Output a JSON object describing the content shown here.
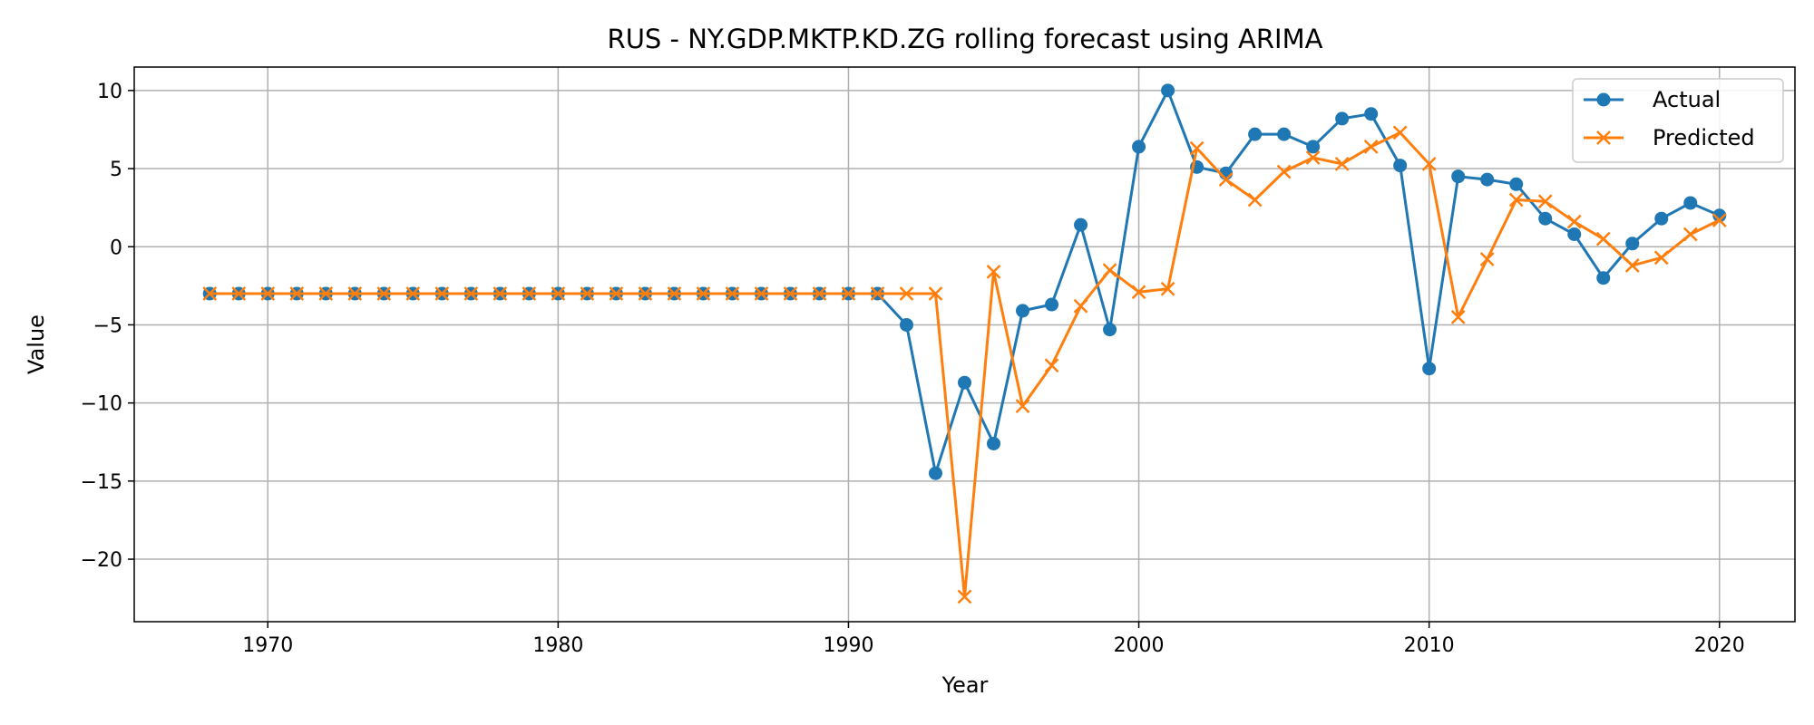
{
  "chart_data": {
    "type": "line",
    "title": "RUS - NY.GDP.MKTP.KD.ZG rolling forecast using ARIMA",
    "xlabel": "Year",
    "ylabel": "Value",
    "xlim": [
      1965.4,
      2022.6
    ],
    "ylim": [
      -24.0,
      11.5
    ],
    "xticks": [
      1970,
      1980,
      1990,
      2000,
      2010,
      2020
    ],
    "xtick_labels": [
      "1970",
      "1980",
      "1990",
      "2000",
      "2010",
      "2020"
    ],
    "yticks": [
      10,
      5,
      0,
      -5,
      -10,
      -15,
      -20
    ],
    "ytick_labels": [
      "10",
      "5",
      "0",
      "−5",
      "−10",
      "−15",
      "−20"
    ],
    "grid": true,
    "legend_position": "top-right",
    "x": [
      1968,
      1969,
      1970,
      1971,
      1972,
      1973,
      1974,
      1975,
      1976,
      1977,
      1978,
      1979,
      1980,
      1981,
      1982,
      1983,
      1984,
      1985,
      1986,
      1987,
      1988,
      1989,
      1990,
      1991,
      1992,
      1993,
      1994,
      1995,
      1996,
      1997,
      1998,
      1999,
      2000,
      2001,
      2002,
      2003,
      2004,
      2005,
      2006,
      2007,
      2008,
      2009,
      2010,
      2011,
      2012,
      2013,
      2014,
      2015,
      2016,
      2017,
      2018,
      2019,
      2020
    ],
    "series": [
      {
        "name": "Actual",
        "color": "#1f77b4",
        "marker": "circle",
        "values": [
          -3.0,
          -3.0,
          -3.0,
          -3.0,
          -3.0,
          -3.0,
          -3.0,
          -3.0,
          -3.0,
          -3.0,
          -3.0,
          -3.0,
          -3.0,
          -3.0,
          -3.0,
          -3.0,
          -3.0,
          -3.0,
          -3.0,
          -3.0,
          -3.0,
          -3.0,
          -3.0,
          -3.0,
          -5.0,
          -14.5,
          -8.7,
          -12.6,
          -4.1,
          -3.7,
          1.4,
          -5.3,
          6.4,
          10.0,
          5.1,
          4.7,
          7.2,
          7.2,
          6.4,
          8.2,
          8.5,
          5.2,
          -7.8,
          4.5,
          4.3,
          4.0,
          1.8,
          0.8,
          -2.0,
          0.2,
          1.8,
          2.8,
          2.0
        ]
      },
      {
        "name": "Predicted",
        "color": "#ff7f0e",
        "marker": "x",
        "values": [
          -3.0,
          -3.0,
          -3.0,
          -3.0,
          -3.0,
          -3.0,
          -3.0,
          -3.0,
          -3.0,
          -3.0,
          -3.0,
          -3.0,
          -3.0,
          -3.0,
          -3.0,
          -3.0,
          -3.0,
          -3.0,
          -3.0,
          -3.0,
          -3.0,
          -3.0,
          -3.0,
          -3.0,
          -3.0,
          -3.0,
          -22.4,
          -1.6,
          -10.2,
          -7.6,
          -3.8,
          -1.5,
          -2.9,
          -2.7,
          6.3,
          4.3,
          3.0,
          4.8,
          5.7,
          5.3,
          6.4,
          7.3,
          5.3,
          -4.5,
          -0.8,
          3.0,
          2.9,
          1.6,
          0.5,
          -1.2,
          -0.7,
          0.8,
          1.7
        ]
      }
    ]
  }
}
